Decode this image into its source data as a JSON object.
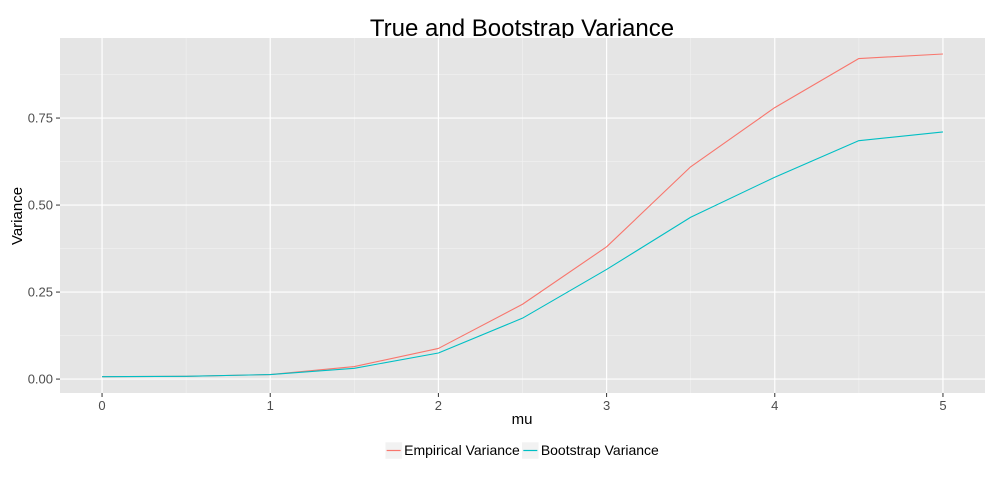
{
  "chart_data": {
    "type": "line",
    "title": "True and Bootstrap Variance",
    "xlabel": "mu",
    "ylabel": "Variance",
    "x": [
      0,
      0.5,
      1,
      1.5,
      2,
      2.5,
      3,
      3.5,
      4,
      4.5,
      5
    ],
    "series": [
      {
        "name": "Empirical Variance",
        "color": "#F8766D",
        "values": [
          0.007,
          0.008,
          0.013,
          0.036,
          0.088,
          0.215,
          0.38,
          0.61,
          0.78,
          0.921,
          0.934
        ]
      },
      {
        "name": "Bootstrap Variance",
        "color": "#00BFC4",
        "values": [
          0.007,
          0.008,
          0.013,
          0.031,
          0.075,
          0.175,
          0.315,
          0.465,
          0.58,
          0.685,
          0.71
        ]
      }
    ],
    "xticks": [
      0,
      1,
      2,
      3,
      4,
      5
    ],
    "xtick_labels": [
      "0",
      "1",
      "2",
      "3",
      "4",
      "5"
    ],
    "yticks": [
      0,
      0.25,
      0.5,
      0.75
    ],
    "ytick_labels": [
      "0.00",
      "0.25",
      "0.50",
      "0.75"
    ],
    "xlim": [
      -0.25,
      5.25
    ],
    "ylim": [
      -0.04,
      0.98
    ],
    "grid": true,
    "legend_position": "bottom",
    "panel_background": "#E5E5E5",
    "grid_color": "#FFFFFF"
  }
}
